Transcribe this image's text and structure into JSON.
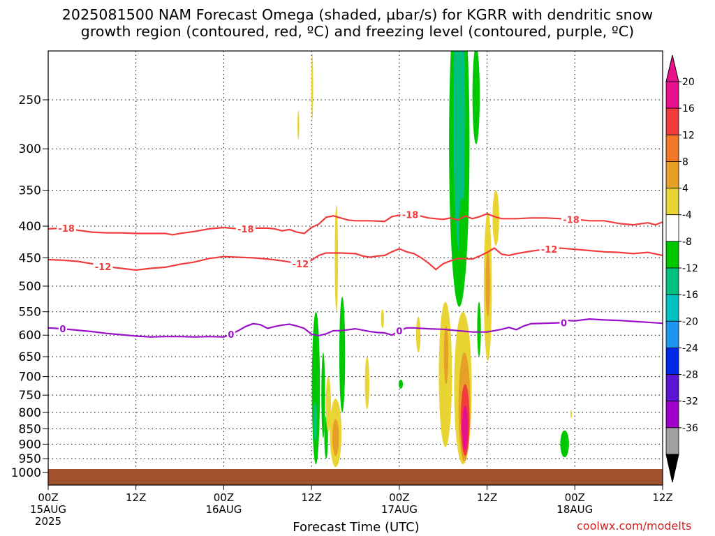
{
  "chart_data": {
    "type": "heatmap",
    "title_line1": "2025081500 NAM Forecast Omega (shaded, µbar/s) for KGRR with dendritic snow",
    "title_line2": "growth region (contoured, red, ºC) and freezing level (contoured, purple, ºC)",
    "xlabel": "Forecast Time (UTC)",
    "x_axis": {
      "range_hours": [
        0,
        84
      ],
      "ticks": [
        {
          "h": 0,
          "l1": "00Z",
          "l2": "15AUG",
          "l3": "2025"
        },
        {
          "h": 12,
          "l1": "12Z",
          "l2": "",
          "l3": ""
        },
        {
          "h": 24,
          "l1": "00Z",
          "l2": "16AUG",
          "l3": ""
        },
        {
          "h": 36,
          "l1": "12Z",
          "l2": "",
          "l3": ""
        },
        {
          "h": 48,
          "l1": "00Z",
          "l2": "17AUG",
          "l3": ""
        },
        {
          "h": 60,
          "l1": "12Z",
          "l2": "",
          "l3": ""
        },
        {
          "h": 72,
          "l1": "00Z",
          "l2": "18AUG",
          "l3": ""
        },
        {
          "h": 84,
          "l1": "12Z",
          "l2": "",
          "l3": ""
        }
      ]
    },
    "y_axis": {
      "units": "hPa",
      "log_pressure": true,
      "range": [
        1050,
        200
      ],
      "ticks": [
        250,
        300,
        350,
        400,
        450,
        500,
        550,
        600,
        650,
        700,
        750,
        800,
        850,
        900,
        950,
        1000
      ]
    },
    "colorbar": {
      "labels": [
        "20",
        "16",
        "12",
        "8",
        "4",
        "-4",
        "-8",
        "-12",
        "-16",
        "-20",
        "-24",
        "-28",
        "-32",
        "-36"
      ],
      "colors": [
        "#e8108c",
        "#f03c3c",
        "#f07828",
        "#e6a028",
        "#e8d432",
        "#ffffff",
        "#00c800",
        "#00c080",
        "#00c0c0",
        "#1e96f0",
        "#0028e6",
        "#5a14d2",
        "#a000c8",
        "#a0a0a0"
      ],
      "extend_top": "#e8108c",
      "extend_bottom": "#000000"
    },
    "contours": [
      {
        "label": "-18",
        "color": "#f03c3c",
        "label_positions_h": [
          2.5,
          27,
          49.5,
          71.5
        ],
        "points": [
          [
            0,
            404
          ],
          [
            2,
            403
          ],
          [
            4,
            406
          ],
          [
            6,
            409
          ],
          [
            8,
            410
          ],
          [
            10,
            410
          ],
          [
            12,
            411
          ],
          [
            14,
            411
          ],
          [
            16,
            411
          ],
          [
            17,
            413
          ],
          [
            18,
            411
          ],
          [
            20,
            408
          ],
          [
            22,
            404
          ],
          [
            24,
            402
          ],
          [
            26,
            404
          ],
          [
            28,
            403
          ],
          [
            30,
            403
          ],
          [
            31,
            404
          ],
          [
            32,
            407
          ],
          [
            33,
            405
          ],
          [
            34,
            409
          ],
          [
            35,
            411
          ],
          [
            36,
            402
          ],
          [
            37,
            397
          ],
          [
            38,
            387
          ],
          [
            39,
            385
          ],
          [
            40,
            388
          ],
          [
            41,
            391
          ],
          [
            42,
            392
          ],
          [
            44,
            392
          ],
          [
            46,
            393
          ],
          [
            47,
            386
          ],
          [
            48,
            384
          ],
          [
            50,
            383
          ],
          [
            52,
            388
          ],
          [
            54,
            390
          ],
          [
            55,
            388
          ],
          [
            56,
            391
          ],
          [
            57,
            385
          ],
          [
            58,
            389
          ],
          [
            59,
            386
          ],
          [
            60,
            382
          ],
          [
            61,
            386
          ],
          [
            62,
            389
          ],
          [
            64,
            389
          ],
          [
            66,
            388
          ],
          [
            68,
            388
          ],
          [
            70,
            389
          ],
          [
            72,
            390
          ],
          [
            74,
            392
          ],
          [
            76,
            392
          ],
          [
            78,
            396
          ],
          [
            80,
            398
          ],
          [
            82,
            395
          ],
          [
            83,
            398
          ],
          [
            84,
            394
          ]
        ]
      },
      {
        "label": "-12",
        "color": "#f03c3c",
        "label_positions_h": [
          7.5,
          34.5,
          68.5
        ],
        "points": [
          [
            0,
            453
          ],
          [
            2,
            454
          ],
          [
            4,
            456
          ],
          [
            6,
            460
          ],
          [
            8,
            465
          ],
          [
            10,
            468
          ],
          [
            12,
            471
          ],
          [
            14,
            468
          ],
          [
            16,
            466
          ],
          [
            18,
            461
          ],
          [
            20,
            457
          ],
          [
            22,
            451
          ],
          [
            24,
            448
          ],
          [
            26,
            449
          ],
          [
            28,
            450
          ],
          [
            30,
            452
          ],
          [
            32,
            455
          ],
          [
            33,
            457
          ],
          [
            34,
            460
          ],
          [
            35,
            460
          ],
          [
            36,
            454
          ],
          [
            37,
            446
          ],
          [
            38,
            442
          ],
          [
            40,
            442
          ],
          [
            42,
            443
          ],
          [
            43,
            447
          ],
          [
            44,
            449
          ],
          [
            45,
            447
          ],
          [
            46,
            446
          ],
          [
            47,
            440
          ],
          [
            48,
            435
          ],
          [
            49,
            440
          ],
          [
            50,
            443
          ],
          [
            51,
            450
          ],
          [
            52,
            459
          ],
          [
            53,
            470
          ],
          [
            54,
            460
          ],
          [
            55,
            455
          ],
          [
            56,
            451
          ],
          [
            58,
            452
          ],
          [
            59,
            447
          ],
          [
            60,
            441
          ],
          [
            61,
            434
          ],
          [
            62,
            444
          ],
          [
            63,
            446
          ],
          [
            64,
            443
          ],
          [
            66,
            439
          ],
          [
            68,
            436
          ],
          [
            70,
            434
          ],
          [
            72,
            436
          ],
          [
            74,
            438
          ],
          [
            76,
            440
          ],
          [
            78,
            441
          ],
          [
            80,
            443
          ],
          [
            82,
            441
          ],
          [
            84,
            446
          ]
        ]
      },
      {
        "label": "0",
        "color": "#9a10c8",
        "label_positions_h": [
          2,
          25,
          48,
          70.5
        ],
        "points": [
          [
            0,
            584
          ],
          [
            2,
            586
          ],
          [
            4,
            589
          ],
          [
            6,
            592
          ],
          [
            8,
            596
          ],
          [
            10,
            599
          ],
          [
            12,
            602
          ],
          [
            14,
            604
          ],
          [
            16,
            603
          ],
          [
            18,
            603
          ],
          [
            20,
            604
          ],
          [
            22,
            603
          ],
          [
            24,
            604
          ],
          [
            25,
            598
          ],
          [
            26,
            590
          ],
          [
            27,
            581
          ],
          [
            28,
            575
          ],
          [
            29,
            577
          ],
          [
            30,
            585
          ],
          [
            31,
            581
          ],
          [
            32,
            578
          ],
          [
            33,
            576
          ],
          [
            34,
            580
          ],
          [
            35,
            585
          ],
          [
            36,
            598
          ],
          [
            37,
            601
          ],
          [
            38,
            597
          ],
          [
            39,
            590
          ],
          [
            40,
            590
          ],
          [
            42,
            586
          ],
          [
            44,
            592
          ],
          [
            45,
            594
          ],
          [
            46,
            595
          ],
          [
            47,
            600
          ],
          [
            48,
            590
          ],
          [
            49,
            584
          ],
          [
            50,
            584
          ],
          [
            52,
            586
          ],
          [
            54,
            587
          ],
          [
            56,
            590
          ],
          [
            58,
            593
          ],
          [
            60,
            593
          ],
          [
            61,
            590
          ],
          [
            62,
            587
          ],
          [
            63,
            583
          ],
          [
            64,
            588
          ],
          [
            65,
            580
          ],
          [
            66,
            575
          ],
          [
            68,
            574
          ],
          [
            70,
            573
          ],
          [
            71,
            568
          ],
          [
            72,
            569
          ],
          [
            73,
            567
          ],
          [
            74,
            565
          ],
          [
            76,
            567
          ],
          [
            78,
            568
          ],
          [
            80,
            570
          ],
          [
            82,
            572
          ],
          [
            84,
            574
          ]
        ]
      }
    ],
    "freezing_level_color": "#9a10c8",
    "ground_color": "#a0522d"
  },
  "watermark": "coolwx.com/modelts"
}
